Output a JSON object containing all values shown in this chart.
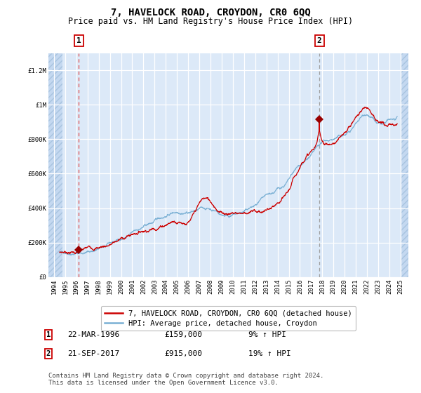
{
  "title": "7, HAVELOCK ROAD, CROYDON, CR0 6QQ",
  "subtitle": "Price paid vs. HM Land Registry's House Price Index (HPI)",
  "xlim": [
    1993.5,
    2025.7
  ],
  "ylim": [
    0,
    1300000
  ],
  "yticks": [
    0,
    200000,
    400000,
    600000,
    800000,
    1000000,
    1200000
  ],
  "ytick_labels": [
    "£0",
    "£200K",
    "£400K",
    "£600K",
    "£800K",
    "£1M",
    "£1.2M"
  ],
  "xtick_years": [
    1994,
    1995,
    1996,
    1997,
    1998,
    1999,
    2000,
    2001,
    2002,
    2003,
    2004,
    2005,
    2006,
    2007,
    2008,
    2009,
    2010,
    2011,
    2012,
    2013,
    2014,
    2015,
    2016,
    2017,
    2018,
    2019,
    2020,
    2021,
    2022,
    2023,
    2024,
    2025
  ],
  "plot_bg_color": "#dce9f8",
  "grid_color": "#ffffff",
  "red_line_color": "#cc0000",
  "blue_line_color": "#7ab0d4",
  "hatch_left_end": 1994.75,
  "hatch_right_start": 2025.0,
  "vline1_x": 1996.23,
  "vline2_x": 2017.73,
  "marker1_x": 1996.23,
  "marker1_y": 159000,
  "marker2_x": 2017.73,
  "marker2_y": 915000,
  "legend_line1": "7, HAVELOCK ROAD, CROYDON, CR0 6QQ (detached house)",
  "legend_line2": "HPI: Average price, detached house, Croydon",
  "table_row1": [
    "1",
    "22-MAR-1996",
    "£159,000",
    "9% ↑ HPI"
  ],
  "table_row2": [
    "2",
    "21-SEP-2017",
    "£915,000",
    "19% ↑ HPI"
  ],
  "footnote": "Contains HM Land Registry data © Crown copyright and database right 2024.\nThis data is licensed under the Open Government Licence v3.0.",
  "title_fontsize": 10,
  "subtitle_fontsize": 8.5,
  "tick_fontsize": 6.5,
  "legend_fontsize": 7.5,
  "table_fontsize": 8,
  "footnote_fontsize": 6.5
}
